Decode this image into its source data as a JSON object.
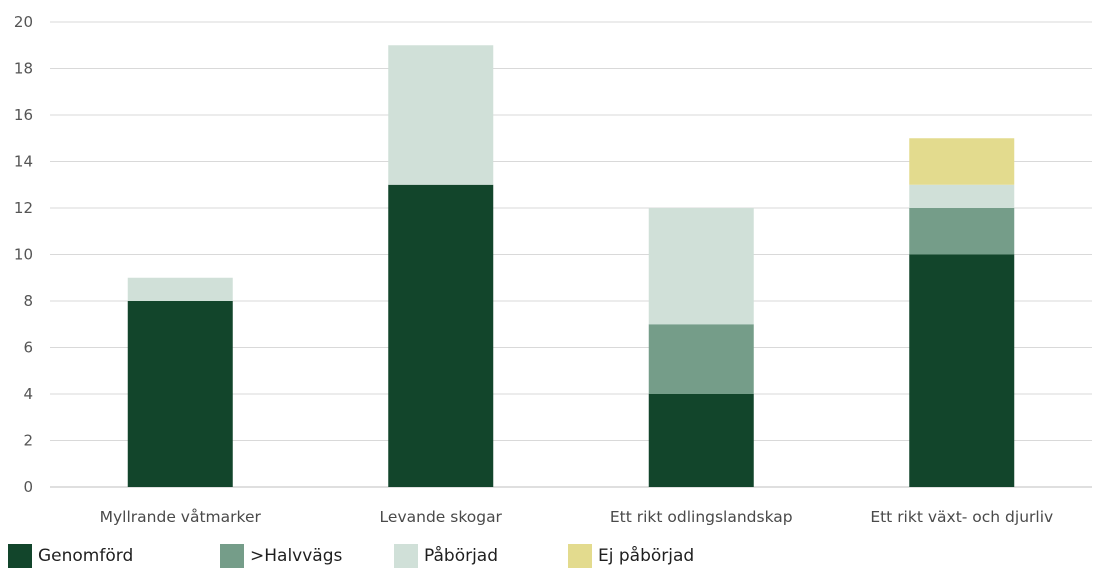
{
  "chart_data": {
    "type": "bar",
    "stacked": true,
    "title": "",
    "xlabel": "",
    "ylabel": "",
    "ylim": [
      0,
      20
    ],
    "yticks": [
      0,
      2,
      4,
      6,
      8,
      10,
      12,
      14,
      16,
      18,
      20
    ],
    "grid": true,
    "legend_position": "bottom-left",
    "categories": [
      "Myllrande våtmarker",
      "Levande skogar",
      "Ett rikt odlingslandskap",
      "Ett rikt växt- och djurliv"
    ],
    "series": [
      {
        "name": "Genomförd",
        "color": "#12452b",
        "values": [
          8,
          13,
          4,
          10
        ]
      },
      {
        "name": ">Halvvägs",
        "color": "#759d89",
        "values": [
          0,
          0,
          3,
          2
        ]
      },
      {
        "name": "Påbörjad",
        "color": "#d0e0d8",
        "values": [
          1,
          6,
          5,
          1
        ]
      },
      {
        "name": "Ej påbörjad",
        "color": "#e3db8e",
        "values": [
          0,
          0,
          0,
          2
        ]
      }
    ]
  }
}
